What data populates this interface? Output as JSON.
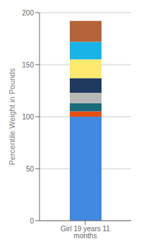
{
  "chart_data": {
    "type": "bar",
    "stacked": true,
    "ylabel": "Percentile Weight in Pounds",
    "categories": [
      "Girl 19 years 11 months"
    ],
    "series": [
      {
        "color": "#4189e0",
        "values": [
          100
        ]
      },
      {
        "color": "#e84e0f",
        "values": [
          5
        ]
      },
      {
        "color": "#1a6b7c",
        "values": [
          8
        ]
      },
      {
        "color": "#b8b8b8",
        "values": [
          10
        ]
      },
      {
        "color": "#1e3a5f",
        "values": [
          14
        ]
      },
      {
        "color": "#fde870",
        "values": [
          18
        ]
      },
      {
        "color": "#1ab3e8",
        "values": [
          17
        ]
      },
      {
        "color": "#b5633a",
        "values": [
          20
        ]
      }
    ],
    "ylim": [
      0,
      200
    ],
    "yticks": [
      0,
      50,
      100,
      150,
      200
    ],
    "grid": true
  }
}
